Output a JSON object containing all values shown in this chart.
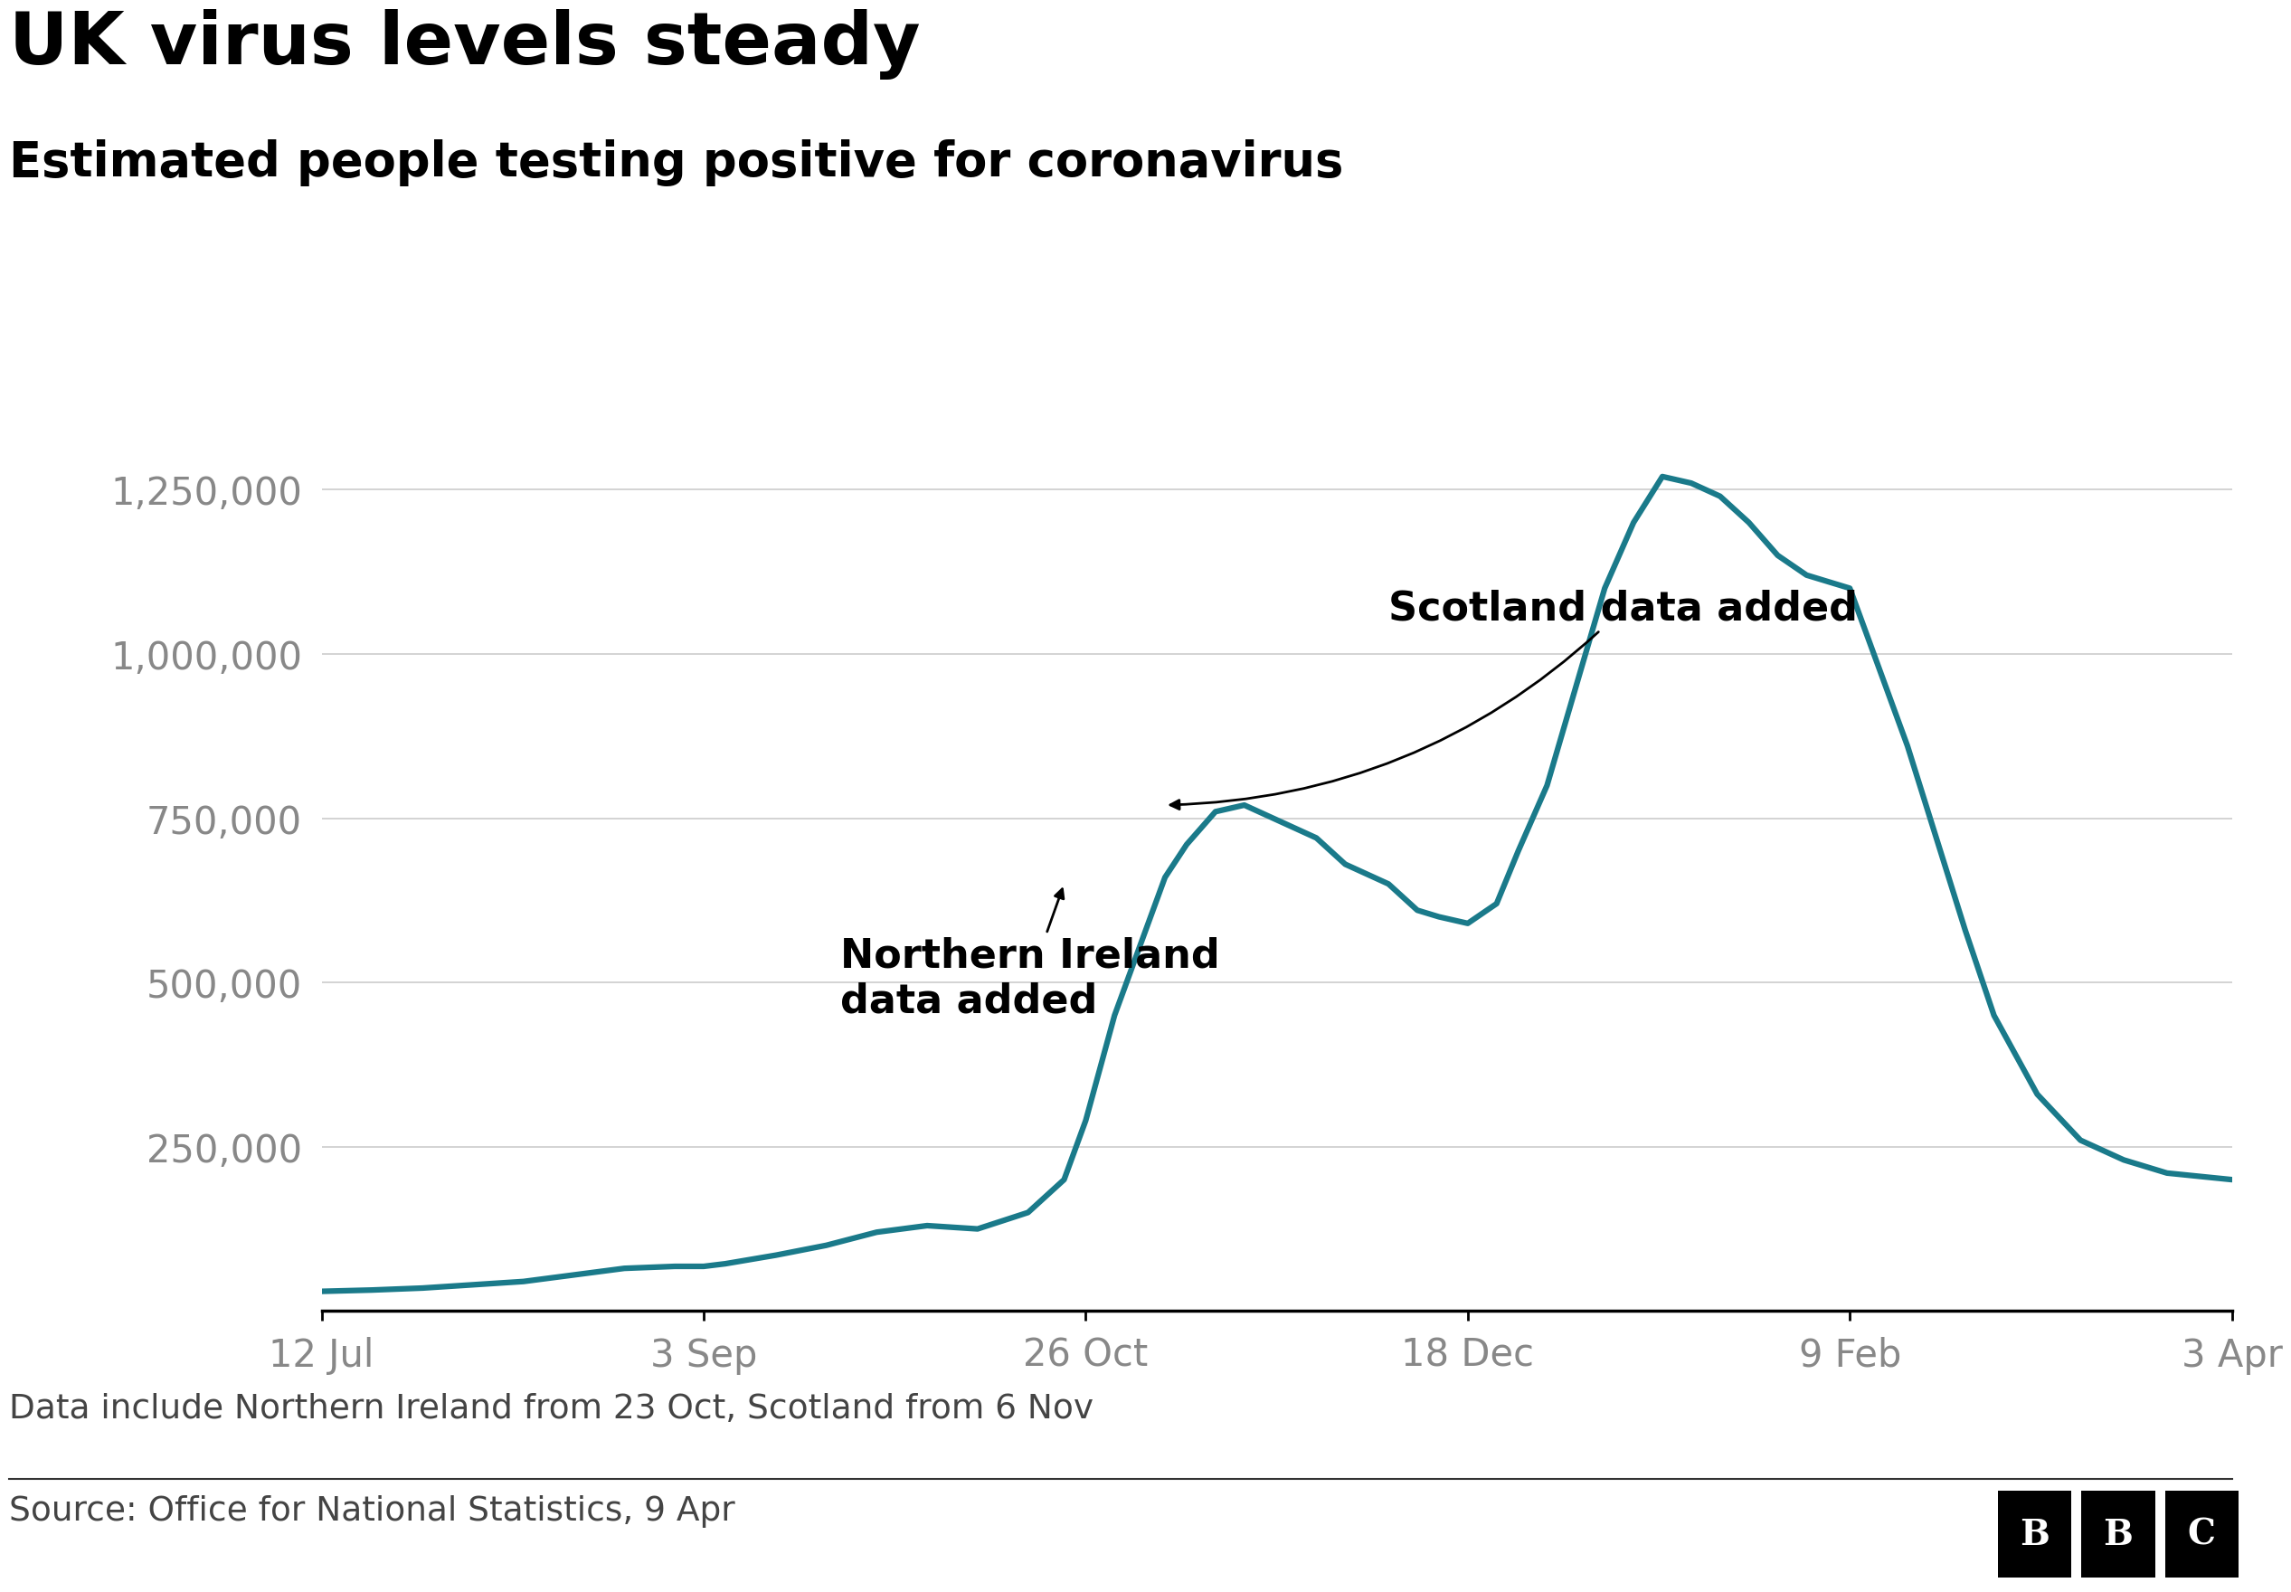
{
  "title": "UK virus levels steady",
  "subtitle": "Estimated people testing positive for coronavirus",
  "footnote": "Data include Northern Ireland from 23 Oct, Scotland from 6 Nov",
  "source": "Source: Office for National Statistics, 9 Apr",
  "line_color": "#1a7a8a",
  "line_width": 4.5,
  "background_color": "#ffffff",
  "title_fontsize": 58,
  "subtitle_fontsize": 38,
  "footnote_fontsize": 27,
  "source_fontsize": 27,
  "tick_label_fontsize": 30,
  "annotation_fontsize": 32,
  "ytick_color": "#888888",
  "xtick_color": "#888888",
  "grid_color": "#cccccc",
  "axis_color": "#000000",
  "ylim": [
    0,
    1400000
  ],
  "yticks": [
    0,
    250000,
    500000,
    750000,
    1000000,
    1250000
  ],
  "ytick_labels": [
    "",
    "250,000",
    "500,000",
    "750,000",
    "1,000,000",
    "1,250,000"
  ],
  "xtick_labels": [
    "12 Jul",
    "3 Sep",
    "26 Oct",
    "18 Dec",
    "9 Feb",
    "3 Apr"
  ],
  "xtick_positions": [
    0,
    53,
    106,
    159,
    212,
    265
  ],
  "x": [
    0,
    7,
    14,
    21,
    28,
    35,
    42,
    49,
    53,
    56,
    63,
    70,
    77,
    84,
    91,
    98,
    103,
    106,
    110,
    117,
    120,
    124,
    128,
    132,
    138,
    142,
    148,
    152,
    155,
    159,
    163,
    166,
    170,
    174,
    178,
    182,
    186,
    190,
    194,
    198,
    202,
    206,
    212,
    216,
    220,
    224,
    228,
    232,
    238,
    244,
    250,
    256,
    265
  ],
  "y": [
    30000,
    32000,
    35000,
    40000,
    45000,
    55000,
    65000,
    68000,
    68000,
    72000,
    85000,
    100000,
    120000,
    130000,
    125000,
    150000,
    200000,
    290000,
    450000,
    660000,
    710000,
    760000,
    770000,
    750000,
    720000,
    680000,
    650000,
    610000,
    600000,
    590000,
    620000,
    700000,
    800000,
    950000,
    1100000,
    1200000,
    1270000,
    1260000,
    1240000,
    1200000,
    1150000,
    1120000,
    1100000,
    980000,
    860000,
    720000,
    580000,
    450000,
    330000,
    260000,
    230000,
    210000,
    200000
  ]
}
